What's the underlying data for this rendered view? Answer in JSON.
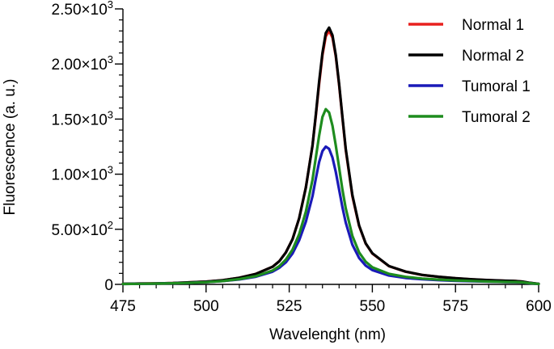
{
  "chart_data": {
    "type": "line",
    "title": "",
    "xlabel": "Wavelenght (nm)",
    "ylabel": "Fluorescence (a. u.)",
    "xlim": [
      475,
      600
    ],
    "ylim": [
      0,
      2500
    ],
    "x_ticks": [
      475,
      500,
      525,
      550,
      575,
      600
    ],
    "x_tick_labels": [
      "475",
      "500",
      "525",
      "550",
      "575",
      "600"
    ],
    "y_ticks": [
      0,
      500,
      1000,
      1500,
      2000,
      2500
    ],
    "y_tick_labels": [
      {
        "mantissa": "0",
        "exp": ""
      },
      {
        "mantissa": "5.00×10",
        "exp": "2"
      },
      {
        "mantissa": "1.00×10",
        "exp": "3"
      },
      {
        "mantissa": "1.50×10",
        "exp": "3"
      },
      {
        "mantissa": "2.00×10",
        "exp": "3"
      },
      {
        "mantissa": "2.50×10",
        "exp": "3"
      }
    ],
    "legend_position": "top-right",
    "x": [
      475,
      480,
      485,
      490,
      495,
      500,
      505,
      510,
      515,
      520,
      522,
      524,
      526,
      528,
      530,
      532,
      533,
      534,
      535,
      536,
      537,
      538,
      539,
      540,
      541,
      542,
      544,
      546,
      548,
      550,
      555,
      560,
      565,
      570,
      575,
      580,
      585,
      590,
      593,
      595,
      597,
      600
    ],
    "series": [
      {
        "name": "Normal 1",
        "color": "#e8211e",
        "values": [
          5,
          7,
          9,
          12,
          18,
          25,
          38,
          60,
          95,
          160,
          210,
          290,
          410,
          600,
          880,
          1260,
          1530,
          1820,
          2080,
          2250,
          2300,
          2240,
          2070,
          1810,
          1510,
          1220,
          800,
          530,
          370,
          280,
          165,
          115,
          85,
          68,
          55,
          45,
          38,
          32,
          30,
          25,
          15,
          5
        ]
      },
      {
        "name": "Normal 2",
        "color": "#000000",
        "values": [
          5,
          7,
          9,
          12,
          18,
          25,
          38,
          60,
          95,
          160,
          210,
          290,
          410,
          600,
          880,
          1260,
          1540,
          1840,
          2100,
          2280,
          2330,
          2260,
          2080,
          1820,
          1520,
          1230,
          810,
          535,
          372,
          282,
          166,
          116,
          86,
          69,
          56,
          46,
          39,
          33,
          31,
          26,
          16,
          5
        ]
      },
      {
        "name": "Tumoral 1",
        "color": "#1a1ab8",
        "values": [
          4,
          5,
          7,
          10,
          14,
          20,
          30,
          45,
          70,
          115,
          150,
          200,
          280,
          400,
          570,
          800,
          960,
          1110,
          1210,
          1250,
          1230,
          1150,
          1020,
          860,
          700,
          560,
          360,
          240,
          170,
          130,
          80,
          58,
          46,
          38,
          32,
          28,
          24,
          21,
          20,
          17,
          11,
          4
        ]
      },
      {
        "name": "Tumoral 2",
        "color": "#1e8c1e",
        "values": [
          4,
          5,
          7,
          10,
          14,
          20,
          30,
          48,
          75,
          125,
          165,
          225,
          315,
          455,
          660,
          950,
          1150,
          1350,
          1520,
          1590,
          1560,
          1440,
          1260,
          1060,
          860,
          690,
          440,
          290,
          205,
          155,
          95,
          68,
          53,
          43,
          36,
          31,
          26,
          22,
          21,
          18,
          12,
          4
        ]
      }
    ]
  }
}
